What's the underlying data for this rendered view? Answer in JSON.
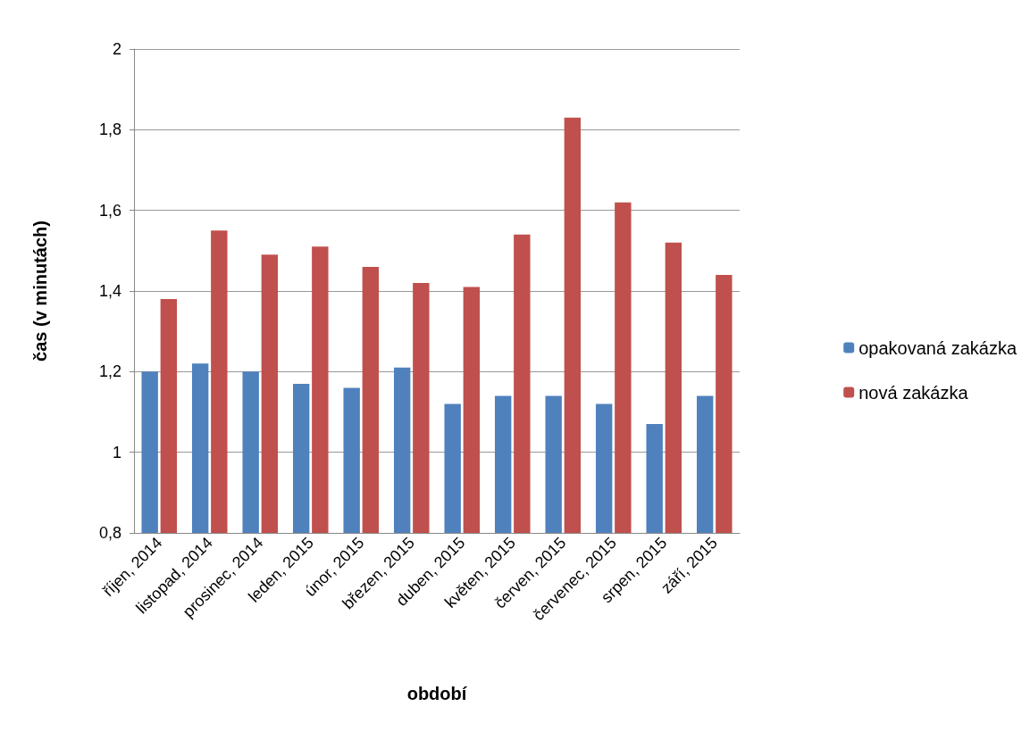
{
  "chart_data": {
    "type": "bar",
    "xlabel": "období",
    "ylabel": "čas (v minutách)",
    "categories": [
      "říjen, 2014",
      "listopad, 2014",
      "prosinec, 2014",
      "leden, 2015",
      "únor, 2015",
      "březen, 2015",
      "duben, 2015",
      "květen, 2015",
      "červen, 2015",
      "červenec, 2015",
      "srpen, 2015",
      "září, 2015"
    ],
    "series": [
      {
        "name": "opakovaná zakázka",
        "color": "#4f81bd",
        "values": [
          1.2,
          1.22,
          1.2,
          1.17,
          1.16,
          1.21,
          1.12,
          1.14,
          1.14,
          1.12,
          1.07,
          1.14
        ]
      },
      {
        "name": "nová zakázka",
        "color": "#c0504d",
        "values": [
          1.38,
          1.55,
          1.49,
          1.51,
          1.46,
          1.42,
          1.41,
          1.54,
          1.83,
          1.62,
          1.52,
          1.44
        ]
      }
    ],
    "ylim": [
      0.8,
      2
    ],
    "yticks": [
      {
        "value": 0.8,
        "label": "0,8"
      },
      1,
      {
        "value": 1.2,
        "label": "1,2"
      },
      {
        "value": 1.4,
        "label": "1,4"
      },
      {
        "value": 1.6,
        "label": "1,6"
      },
      {
        "value": 1.8,
        "label": "1,8"
      },
      2
    ],
    "grid": "y",
    "legend": "right"
  }
}
